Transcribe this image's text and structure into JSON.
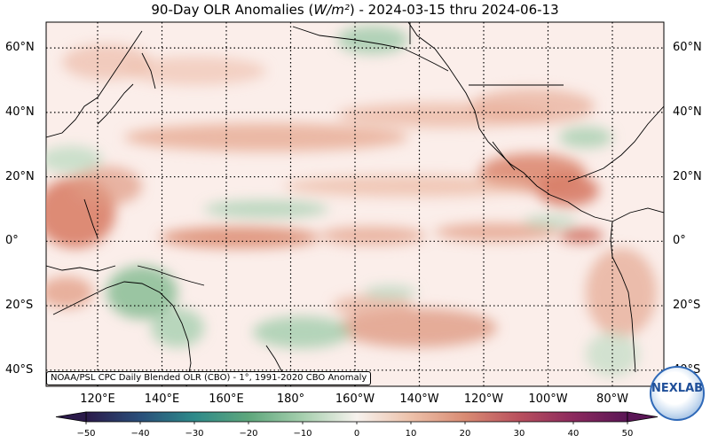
{
  "title": {
    "prefix": "90-Day OLR Anomalies (",
    "unit": "W/m²",
    "suffix": ") - 2024-03-15 thru 2024-06-13"
  },
  "credit": "NOAA/PSL CPC Daily Blended OLR (CBO) - 1°, 1991-2020 CBO Anomaly",
  "lat_labels": [
    {
      "text": "60°N",
      "lat": 60
    },
    {
      "text": "40°N",
      "lat": 40
    },
    {
      "text": "20°N",
      "lat": 20
    },
    {
      "text": "0°",
      "lat": 0
    },
    {
      "text": "20°S",
      "lat": -20
    },
    {
      "text": "40°S",
      "lat": -40
    }
  ],
  "lon_labels": [
    {
      "text": "120°E",
      "lon": 120
    },
    {
      "text": "140°E",
      "lon": 140
    },
    {
      "text": "160°E",
      "lon": 160
    },
    {
      "text": "180°",
      "lon": 180
    },
    {
      "text": "160°W",
      "lon": 200
    },
    {
      "text": "140°W",
      "lon": 220
    },
    {
      "text": "120°W",
      "lon": 240
    },
    {
      "text": "100°W",
      "lon": 260
    },
    {
      "text": "80°W",
      "lon": 280
    }
  ],
  "colorbar": {
    "min": -50,
    "max": 50,
    "ticks": [
      "−50",
      "−40",
      "−30",
      "−20",
      "−10",
      "0",
      "10",
      "20",
      "30",
      "40",
      "50"
    ],
    "colors": [
      "#2b1a4a",
      "#2a4f7a",
      "#2e8a8a",
      "#5ea77c",
      "#a6cfae",
      "#f7f2ee",
      "#edc1aa",
      "#d98b73",
      "#b9505e",
      "#8c2a5e",
      "#5a1656"
    ]
  },
  "logo": "NEXLAB",
  "colors": {
    "background": "#ffffff",
    "plot_background": "#fbeeea",
    "grid": "#000000",
    "positive_anomaly": "#df9c86",
    "negative_anomaly": "#9cc7a4"
  }
}
